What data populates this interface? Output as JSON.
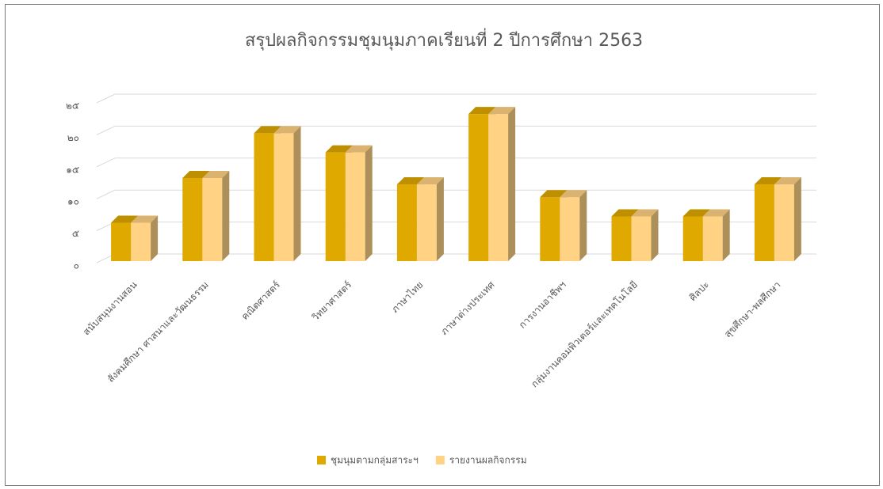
{
  "chart_data": {
    "type": "bar3d",
    "title": "สรุปผลกิจกรรมชุมนุมภาคเรียนที่ 2 ปีการศึกษา 2563",
    "categories": [
      "สนับสนุนงานสอน",
      "สังคมศึกษา ศาสนาและวัฒนธรรม",
      "คณิตศาสตร์",
      "วิทยาศาสตร์",
      "ภาษาไทย",
      "ภาษาต่างประเทศ",
      "การงานอาชีพฯ",
      "กลุ่มงานคอมพิวเตอร์และเทคโนโลยี",
      "ศิลปะ",
      "สุขศึกษา-พลศึกษา"
    ],
    "series": [
      {
        "name": "ชุมนุมตามกลุ่มสาระฯ",
        "color": "#dfa900",
        "values": [
          6,
          13,
          20,
          17,
          12,
          23,
          10,
          7,
          7,
          12
        ]
      },
      {
        "name": "รายงานผลกิจกรรม",
        "color": "#ffd383",
        "values": [
          6,
          13,
          20,
          17,
          12,
          23,
          10,
          7,
          7,
          12
        ]
      }
    ],
    "ylim": [
      0,
      25
    ],
    "yticks": [
      {
        "value": 0,
        "label": "๐"
      },
      {
        "value": 5,
        "label": "๕"
      },
      {
        "value": 10,
        "label": "๑๐"
      },
      {
        "value": 15,
        "label": "๑๕"
      },
      {
        "value": 20,
        "label": "๒๐"
      },
      {
        "value": 25,
        "label": "๒๕"
      }
    ],
    "grid": true,
    "legend": "bottom"
  }
}
